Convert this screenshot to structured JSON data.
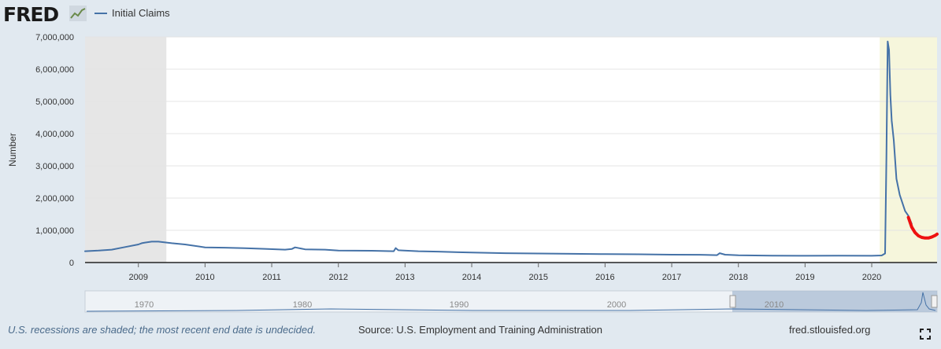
{
  "header": {
    "logo_text": "FRED",
    "legend_label": "Initial Claims"
  },
  "chart_data": {
    "type": "line",
    "title": "",
    "xlabel": "",
    "ylabel": "Number",
    "ylim": [
      0,
      7000000
    ],
    "xlim": [
      2008.2,
      2020.98
    ],
    "yticks": [
      0,
      1000000,
      2000000,
      3000000,
      4000000,
      5000000,
      6000000,
      7000000
    ],
    "ytick_labels": [
      "0",
      "1,000,000",
      "2,000,000",
      "3,000,000",
      "4,000,000",
      "5,000,000",
      "6,000,000",
      "7,000,000"
    ],
    "xticks": [
      2009,
      2010,
      2011,
      2012,
      2013,
      2014,
      2015,
      2016,
      2017,
      2018,
      2019,
      2020
    ],
    "xtick_labels": [
      "2009",
      "2010",
      "2011",
      "2012",
      "2013",
      "2014",
      "2015",
      "2016",
      "2017",
      "2018",
      "2019",
      "2020"
    ],
    "grid": true,
    "legend_position": "top-left",
    "recessions": [
      [
        2008.2,
        2009.42
      ],
      [
        2020.12,
        2020.98
      ]
    ],
    "series": [
      {
        "name": "Initial Claims",
        "color": "#4572a7",
        "x": [
          2008.2,
          2008.4,
          2008.6,
          2008.8,
          2009.0,
          2009.05,
          2009.1,
          2009.2,
          2009.3,
          2009.5,
          2009.7,
          2010.0,
          2010.3,
          2010.6,
          2010.9,
          2011.2,
          2011.3,
          2011.35,
          2011.5,
          2011.8,
          2012.0,
          2012.5,
          2012.83,
          2012.86,
          2012.9,
          2013.2,
          2013.5,
          2013.8,
          2014.0,
          2014.5,
          2015.0,
          2015.5,
          2016.0,
          2016.5,
          2017.0,
          2017.5,
          2017.68,
          2017.72,
          2017.8,
          2018.0,
          2018.5,
          2019.0,
          2019.5,
          2020.0,
          2020.15,
          2020.2,
          2020.22,
          2020.24,
          2020.26,
          2020.28,
          2020.3,
          2020.33,
          2020.37,
          2020.42,
          2020.5,
          2020.55,
          2020.6
        ],
        "values": [
          350000,
          370000,
          400000,
          480000,
          560000,
          600000,
          620000,
          650000,
          650000,
          600000,
          560000,
          470000,
          460000,
          445000,
          425000,
          400000,
          420000,
          470000,
          410000,
          400000,
          370000,
          365000,
          350000,
          450000,
          380000,
          350000,
          340000,
          320000,
          310000,
          290000,
          280000,
          270000,
          260000,
          255000,
          245000,
          240000,
          230000,
          290000,
          245000,
          225000,
          215000,
          210000,
          215000,
          210000,
          220000,
          280000,
          3300000,
          6860000,
          6600000,
          5200000,
          4400000,
          3800000,
          2600000,
          2100000,
          1600000,
          1450000,
          1200000
        ]
      },
      {
        "name": "",
        "color": "#ee1111",
        "x": [
          2020.55,
          2020.6,
          2020.65,
          2020.7,
          2020.75,
          2020.8,
          2020.85,
          2020.9,
          2020.95,
          2020.98
        ],
        "values": [
          1400000,
          1100000,
          930000,
          830000,
          780000,
          760000,
          760000,
          790000,
          840000,
          880000
        ]
      }
    ]
  },
  "navigator": {
    "labels": [
      "1970",
      "1980",
      "1990",
      "2000",
      "2010"
    ]
  },
  "footer": {
    "note": "U.S. recessions are shaded; the most recent end date is undecided.",
    "source": "Source: U.S. Employment and Training Administration",
    "site": "fred.stlouisfed.org"
  }
}
